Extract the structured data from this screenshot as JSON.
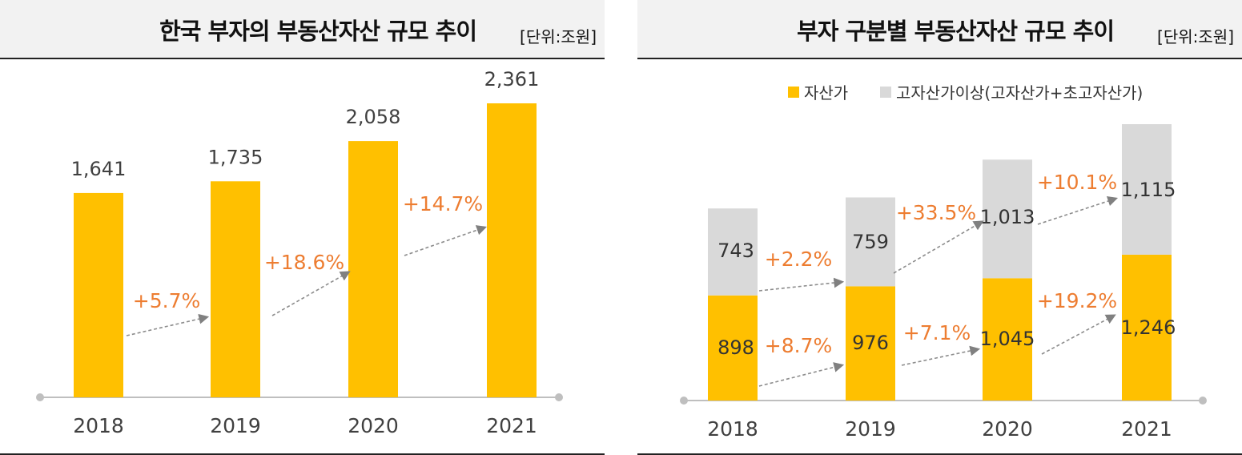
{
  "colors": {
    "yellow": "#ffc000",
    "gray": "#d9d9d9",
    "orange": "#ed7d31",
    "text": "#404040",
    "axis": "#bfbfbf"
  },
  "left": {
    "title": "한국 부자의 부동산자산 규모 추이",
    "unit": "[단위:조원]",
    "chart_data": {
      "type": "bar",
      "categories": [
        "2018",
        "2019",
        "2020",
        "2021"
      ],
      "values": [
        1641,
        1735,
        2058,
        2361
      ],
      "value_labels": [
        "1,641",
        "1,735",
        "2,058",
        "2,361"
      ],
      "growth_labels": [
        "+5.7%",
        "+18.6%",
        "+14.7%"
      ],
      "ylim": [
        0,
        2500
      ]
    }
  },
  "right": {
    "title": "부자 구분별 부동산자산 규모 추이",
    "unit": "[단위:조원]",
    "chart_data": {
      "type": "bar",
      "stacked": true,
      "categories": [
        "2018",
        "2019",
        "2020",
        "2021"
      ],
      "series": [
        {
          "name": "자산가",
          "values": [
            898,
            976,
            1045,
            1246
          ],
          "labels": [
            "898",
            "976",
            "1,045",
            "1,246"
          ],
          "growth_labels": [
            "+8.7%",
            "+7.1%",
            "+19.2%"
          ]
        },
        {
          "name": "고자산가이상(고자산가+초고자산가)",
          "values": [
            743,
            759,
            1013,
            1115
          ],
          "labels": [
            "743",
            "759",
            "1,013",
            "1,115"
          ],
          "growth_labels": [
            "+2.2%",
            "+33.5%",
            "+10.1%"
          ]
        }
      ],
      "legend_position": "top",
      "ylim": [
        0,
        2500
      ]
    }
  }
}
